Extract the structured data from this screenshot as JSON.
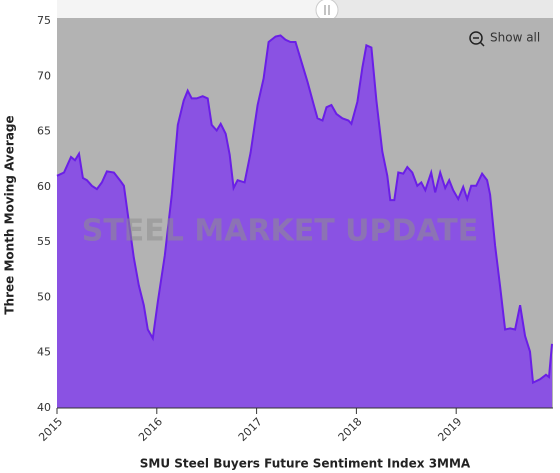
{
  "chart_data": {
    "type": "area",
    "title": "SMU Steel Buyers Future Sentiment Index 3MMA",
    "ylabel": "Three Month Moving Average",
    "watermark": "STEEL MARKET UPDATE",
    "button": "Show all",
    "color": "#8a52e3",
    "line_color": "#6a1fe6",
    "background": "#b3b3b3",
    "xlim": [
      2015,
      2019.97
    ],
    "xticks": [
      2015,
      2016,
      2017,
      2018,
      2019
    ],
    "ylim": [
      40,
      75
    ],
    "yticks": [
      40,
      45,
      50,
      55,
      60,
      65,
      70,
      75
    ],
    "grid": false,
    "series": [
      {
        "name": "Three Month Moving Average",
        "x": [
          2015.0,
          2015.07,
          2015.14,
          2015.18,
          2015.22,
          2015.26,
          2015.3,
          2015.35,
          2015.4,
          2015.45,
          2015.5,
          2015.57,
          2015.63,
          2015.67,
          2015.72,
          2015.77,
          2015.82,
          2015.87,
          2015.91,
          2015.96,
          2016.01,
          2016.08,
          2016.15,
          2016.21,
          2016.27,
          2016.31,
          2016.35,
          2016.4,
          2016.46,
          2016.51,
          2016.55,
          2016.6,
          2016.64,
          2016.69,
          2016.73,
          2016.77,
          2016.81,
          2016.88,
          2016.94,
          2017.01,
          2017.07,
          2017.12,
          2017.19,
          2017.24,
          2017.29,
          2017.34,
          2017.39,
          2017.45,
          2017.51,
          2017.57,
          2017.61,
          2017.66,
          2017.7,
          2017.75,
          2017.8,
          2017.86,
          2017.92,
          2017.95,
          2018.01,
          2018.06,
          2018.1,
          2018.15,
          2018.2,
          2018.26,
          2018.31,
          2018.34,
          2018.38,
          2018.42,
          2018.47,
          2018.51,
          2018.56,
          2018.61,
          2018.65,
          2018.69,
          2018.75,
          2018.79,
          2018.84,
          2018.89,
          2018.93,
          2018.97,
          2019.02,
          2019.07,
          2019.11,
          2019.15,
          2019.2,
          2019.26,
          2019.31,
          2019.34,
          2019.39,
          2019.44,
          2019.49,
          2019.54,
          2019.59,
          2019.64,
          2019.69,
          2019.74,
          2019.77,
          2019.84,
          2019.9,
          2019.93,
          2019.96
        ],
        "values": [
          61.0,
          61.3,
          62.7,
          62.4,
          63.0,
          60.8,
          60.6,
          60.1,
          59.8,
          60.4,
          61.4,
          61.3,
          60.6,
          60.1,
          56.8,
          53.6,
          51.1,
          49.3,
          47.1,
          46.3,
          49.6,
          53.8,
          59.3,
          65.6,
          67.8,
          68.7,
          68.0,
          68.0,
          68.2,
          68.0,
          65.6,
          65.1,
          65.7,
          64.8,
          62.9,
          59.9,
          60.6,
          60.4,
          63.1,
          67.4,
          69.8,
          73.1,
          73.6,
          73.7,
          73.3,
          73.1,
          73.1,
          71.3,
          69.5,
          67.5,
          66.2,
          66.0,
          67.2,
          67.4,
          66.6,
          66.2,
          66.0,
          65.7,
          67.7,
          70.8,
          72.8,
          72.6,
          67.8,
          63.2,
          61.0,
          58.8,
          58.8,
          61.3,
          61.2,
          61.8,
          61.3,
          60.1,
          60.4,
          59.7,
          61.3,
          59.5,
          61.3,
          59.9,
          60.6,
          59.7,
          58.9,
          60.0,
          58.9,
          60.1,
          60.1,
          61.2,
          60.6,
          59.3,
          54.7,
          51.0,
          47.1,
          47.2,
          47.1,
          49.3,
          46.5,
          45.1,
          42.3,
          42.6,
          43.0,
          42.8,
          45.8
        ]
      }
    ]
  }
}
